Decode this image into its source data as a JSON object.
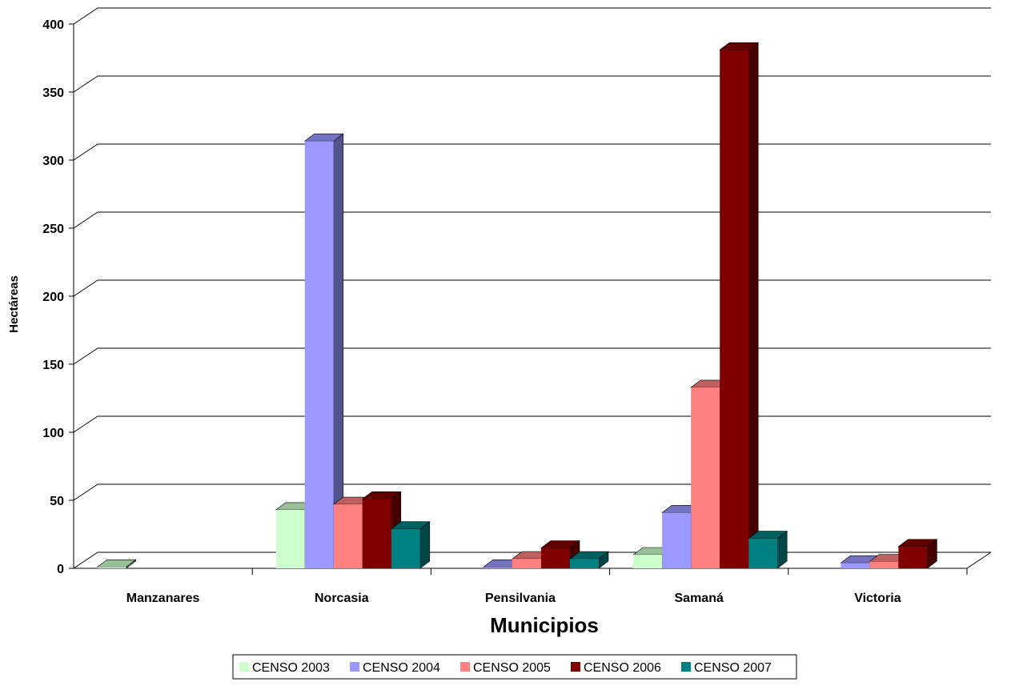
{
  "chart_data": {
    "type": "bar",
    "title": "",
    "xlabel": "Municipios",
    "ylabel": "Hectáreas",
    "ylim": [
      0,
      400
    ],
    "yticks": [
      0,
      50,
      100,
      150,
      200,
      250,
      300,
      350,
      400
    ],
    "grid": true,
    "legend_position": "bottom",
    "categories": [
      "Manzanares",
      "Norcasia",
      "Pensilvania",
      "Samaná",
      "Victoria"
    ],
    "series": [
      {
        "name": "CENSO 2003",
        "color": "#ccffcc",
        "values": [
          1,
          43,
          0,
          10,
          0
        ]
      },
      {
        "name": "CENSO 2004",
        "color": "#9999ff",
        "values": [
          0,
          314,
          1,
          41,
          4
        ]
      },
      {
        "name": "CENSO 2005",
        "color": "#ff8080",
        "values": [
          0,
          47,
          7,
          133,
          5
        ]
      },
      {
        "name": "CENSO 2006",
        "color": "#800000",
        "values": [
          0,
          51,
          15,
          381,
          16
        ]
      },
      {
        "name": "CENSO 2007",
        "color": "#008080",
        "values": [
          0,
          29,
          7,
          22,
          0
        ]
      }
    ]
  }
}
